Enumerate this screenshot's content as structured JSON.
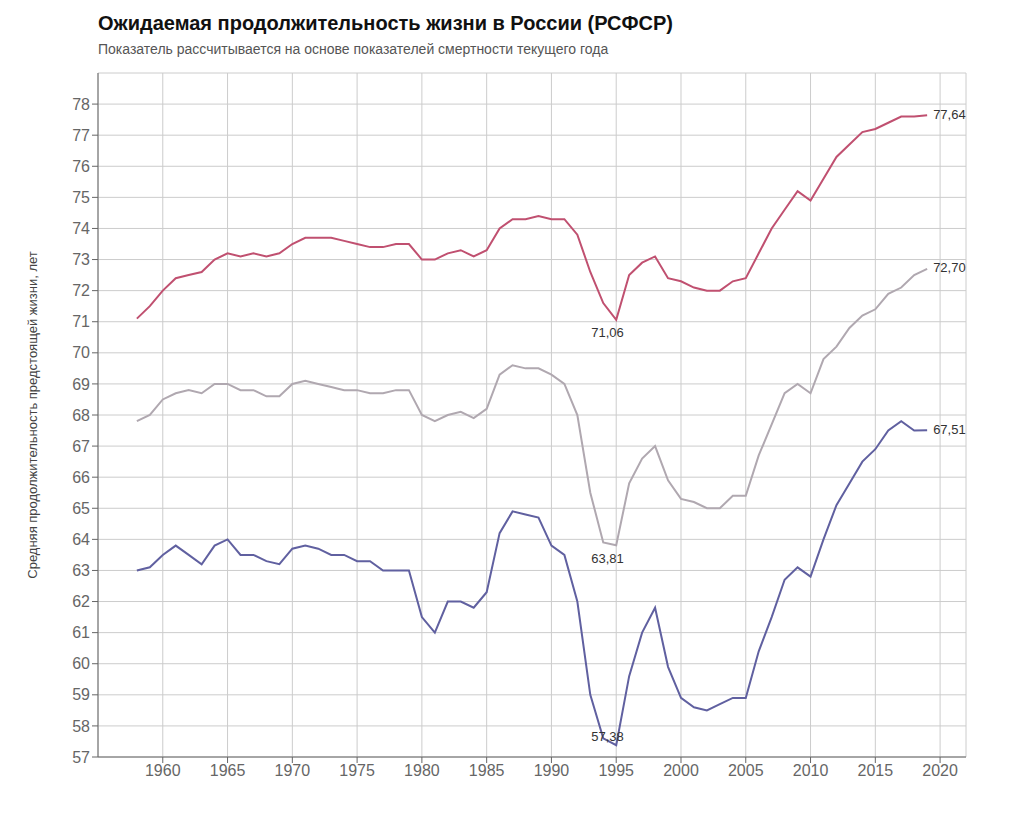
{
  "chart_data": {
    "type": "line",
    "title": "Ожидаемая продолжительность жизни в России (РСФСР)",
    "subtitle": "Показатель рассчитывается на основе показателей смертности текущего года",
    "y_label": "Средняя продолжительность предстоящей жизни, лет",
    "x": [
      1958,
      1959,
      1960,
      1961,
      1962,
      1963,
      1964,
      1965,
      1966,
      1967,
      1968,
      1969,
      1970,
      1971,
      1972,
      1973,
      1974,
      1975,
      1976,
      1977,
      1978,
      1979,
      1980,
      1981,
      1982,
      1983,
      1984,
      1985,
      1986,
      1987,
      1988,
      1989,
      1990,
      1991,
      1992,
      1993,
      1994,
      1995,
      1996,
      1997,
      1998,
      1999,
      2000,
      2001,
      2002,
      2003,
      2004,
      2005,
      2006,
      2007,
      2008,
      2009,
      2010,
      2011,
      2012,
      2013,
      2014,
      2015,
      2016,
      2017,
      2018,
      2019
    ],
    "series": [
      {
        "color": "#c05070",
        "values": [
          71.1,
          71.5,
          72.0,
          72.4,
          72.5,
          72.6,
          73.0,
          73.2,
          73.1,
          73.2,
          73.1,
          73.2,
          73.5,
          73.7,
          73.7,
          73.7,
          73.6,
          73.5,
          73.4,
          73.4,
          73.5,
          73.5,
          73.0,
          73.0,
          73.2,
          73.3,
          73.1,
          73.3,
          74.0,
          74.3,
          74.3,
          74.4,
          74.3,
          74.3,
          73.8,
          72.6,
          71.6,
          71.06,
          72.5,
          72.9,
          73.1,
          72.4,
          72.3,
          72.1,
          72.0,
          72.0,
          72.3,
          72.4,
          73.2,
          74.0,
          74.6,
          75.2,
          74.9,
          75.6,
          76.3,
          76.7,
          77.1,
          77.2,
          77.4,
          77.6,
          77.6,
          77.64
        ]
      },
      {
        "color": "#b0a8b0",
        "values": [
          67.8,
          68.0,
          68.5,
          68.7,
          68.8,
          68.7,
          69.0,
          69.0,
          68.8,
          68.8,
          68.6,
          68.6,
          69.0,
          69.1,
          69.0,
          68.9,
          68.8,
          68.8,
          68.7,
          68.7,
          68.8,
          68.8,
          68.0,
          67.8,
          68.0,
          68.1,
          67.9,
          68.2,
          69.3,
          69.6,
          69.5,
          69.5,
          69.3,
          69.0,
          68.0,
          65.5,
          63.9,
          63.81,
          65.8,
          66.6,
          67.0,
          65.9,
          65.3,
          65.2,
          65.0,
          65.0,
          65.4,
          65.4,
          66.7,
          67.7,
          68.7,
          69.0,
          68.7,
          69.8,
          70.2,
          70.8,
          71.2,
          71.4,
          71.9,
          72.1,
          72.5,
          72.7
        ]
      },
      {
        "color": "#6060a0",
        "values": [
          63.0,
          63.1,
          63.5,
          63.8,
          63.5,
          63.2,
          63.8,
          64.0,
          63.5,
          63.5,
          63.3,
          63.2,
          63.7,
          63.8,
          63.7,
          63.5,
          63.5,
          63.3,
          63.3,
          63.0,
          63.0,
          63.0,
          61.5,
          61.0,
          62.0,
          62.0,
          61.8,
          62.3,
          64.2,
          64.9,
          64.8,
          64.7,
          63.8,
          63.5,
          62.0,
          59.0,
          57.6,
          57.38,
          59.6,
          61.0,
          61.8,
          59.9,
          58.9,
          58.6,
          58.5,
          58.7,
          58.9,
          58.9,
          60.4,
          61.5,
          62.7,
          63.1,
          62.8,
          64.0,
          65.1,
          65.8,
          66.5,
          66.9,
          67.5,
          67.8,
          67.5,
          67.51
        ]
      }
    ],
    "xlim": [
      1955,
      2022
    ],
    "ylim": [
      57,
      79
    ],
    "xticks": [
      1960,
      1965,
      1970,
      1975,
      1980,
      1985,
      1990,
      1995,
      2000,
      2005,
      2010,
      2015,
      2020
    ],
    "yticks": [
      57,
      58,
      59,
      60,
      61,
      62,
      63,
      64,
      65,
      66,
      67,
      68,
      69,
      70,
      71,
      72,
      73,
      74,
      75,
      76,
      77,
      78
    ],
    "grid": true,
    "annotations": [
      {
        "text": "71,06",
        "x": 1994,
        "y": 71.06
      },
      {
        "text": "63,81",
        "x": 1994,
        "y": 63.81
      },
      {
        "text": "57,38",
        "x": 1994,
        "y": 57.38
      },
      {
        "text": "77,64",
        "x": 2019,
        "y": 77.64
      },
      {
        "text": "72,70",
        "x": 2019,
        "y": 72.7
      },
      {
        "text": "67,51",
        "x": 2019,
        "y": 67.51
      }
    ]
  }
}
